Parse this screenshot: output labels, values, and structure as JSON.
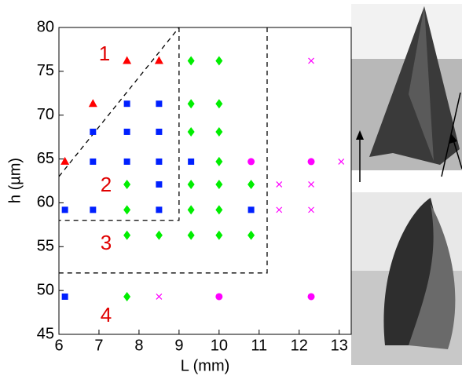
{
  "chart_data": {
    "type": "scatter",
    "x_label": "L (mm)",
    "y_label": "h (µm)",
    "xlim": [
      6,
      13.3
    ],
    "ylim": [
      45,
      80
    ],
    "xticks": [
      6,
      7,
      8,
      9,
      10,
      11,
      12,
      13
    ],
    "yticks": [
      45,
      50,
      55,
      60,
      65,
      70,
      75,
      80
    ],
    "annotations": [
      "1",
      "2",
      "3",
      "4"
    ],
    "dashed_lines": [
      [
        [
          6,
          63
        ],
        [
          9,
          80
        ]
      ],
      [
        [
          9,
          80
        ],
        [
          9,
          58
        ],
        [
          6,
          58
        ]
      ],
      [
        [
          11.2,
          80
        ],
        [
          11.2,
          52
        ],
        [
          6,
          52
        ]
      ]
    ],
    "series": [
      {
        "marker": "triangle",
        "color": "#ff0000",
        "x": [
          6.15,
          6.85,
          7.7,
          8.5
        ],
        "values": [
          64.7,
          71.3,
          76.2,
          76.2
        ]
      },
      {
        "marker": "square",
        "color": "#0020ff",
        "x": [
          6.15,
          6.85,
          6.85,
          6.85,
          7.7,
          8.5,
          7.7,
          8.5,
          7.7,
          8.5,
          8.5,
          8.5,
          9.3,
          10.8,
          6.15
        ],
        "values": [
          59.2,
          59.2,
          64.7,
          68.1,
          71.3,
          71.3,
          68.1,
          68.1,
          64.7,
          64.7,
          62.1,
          59.2,
          64.7,
          59.2,
          49.3
        ]
      },
      {
        "marker": "diamond",
        "color": "#00ee00",
        "x": [
          9.3,
          10,
          9.3,
          10,
          9.3,
          10,
          10,
          7.7,
          9.3,
          10,
          10.8,
          7.7,
          9.3,
          10,
          7.7,
          8.5,
          9.3,
          10,
          10.8,
          7.7
        ],
        "values": [
          76.2,
          76.2,
          71.3,
          71.3,
          68.1,
          68.1,
          64.7,
          62.1,
          62.1,
          62.1,
          62.1,
          59.2,
          59.2,
          59.2,
          56.3,
          56.3,
          56.3,
          56.3,
          56.3,
          49.3
        ]
      },
      {
        "marker": "circle",
        "color": "#ff00ff",
        "x": [
          10.8,
          12.3,
          10,
          12.3
        ],
        "values": [
          64.7,
          64.7,
          49.3,
          49.3
        ]
      },
      {
        "marker": "cross",
        "color": "#ff00ff",
        "x": [
          12.3,
          13.05,
          11.5,
          12.3,
          11.5,
          12.3,
          8.5
        ],
        "values": [
          76.2,
          64.7,
          62.1,
          62.1,
          59.2,
          59.2,
          49.3
        ]
      }
    ]
  }
}
